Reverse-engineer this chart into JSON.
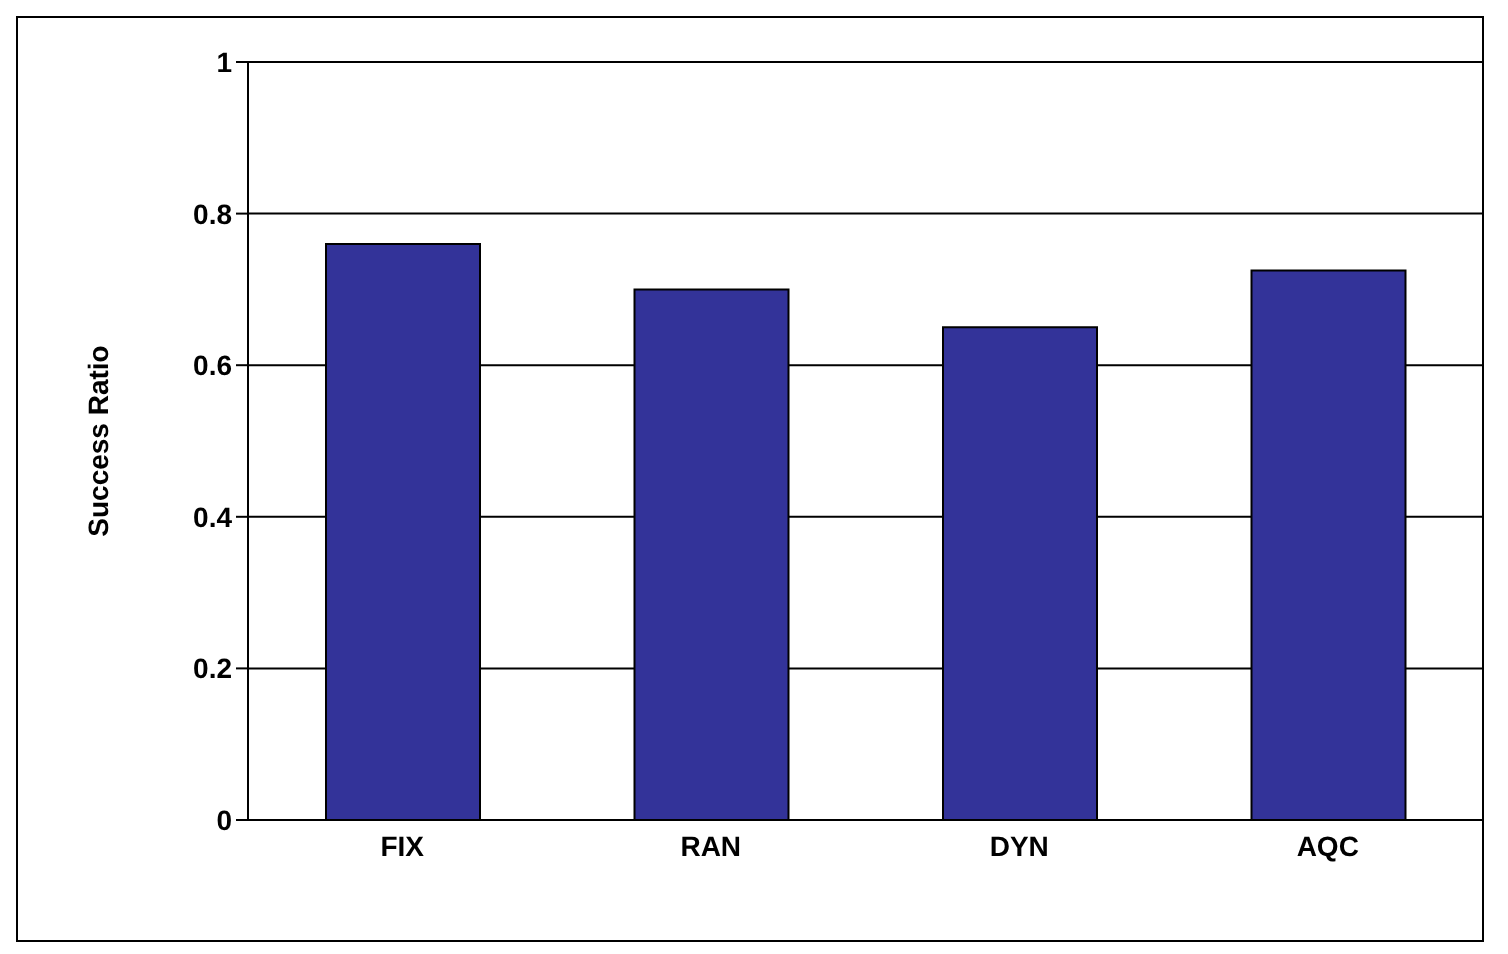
{
  "chart_data": {
    "type": "bar",
    "ylabel": "Success Ratio",
    "categories": [
      "FIX",
      "RAN",
      "DYN",
      "AQC"
    ],
    "values": [
      0.76,
      0.7,
      0.65,
      0.725
    ],
    "color": "#333399",
    "ylim": [
      0,
      1
    ],
    "yticks": [
      0,
      0.2,
      0.4,
      0.6,
      0.8,
      1
    ],
    "grid": "y"
  }
}
